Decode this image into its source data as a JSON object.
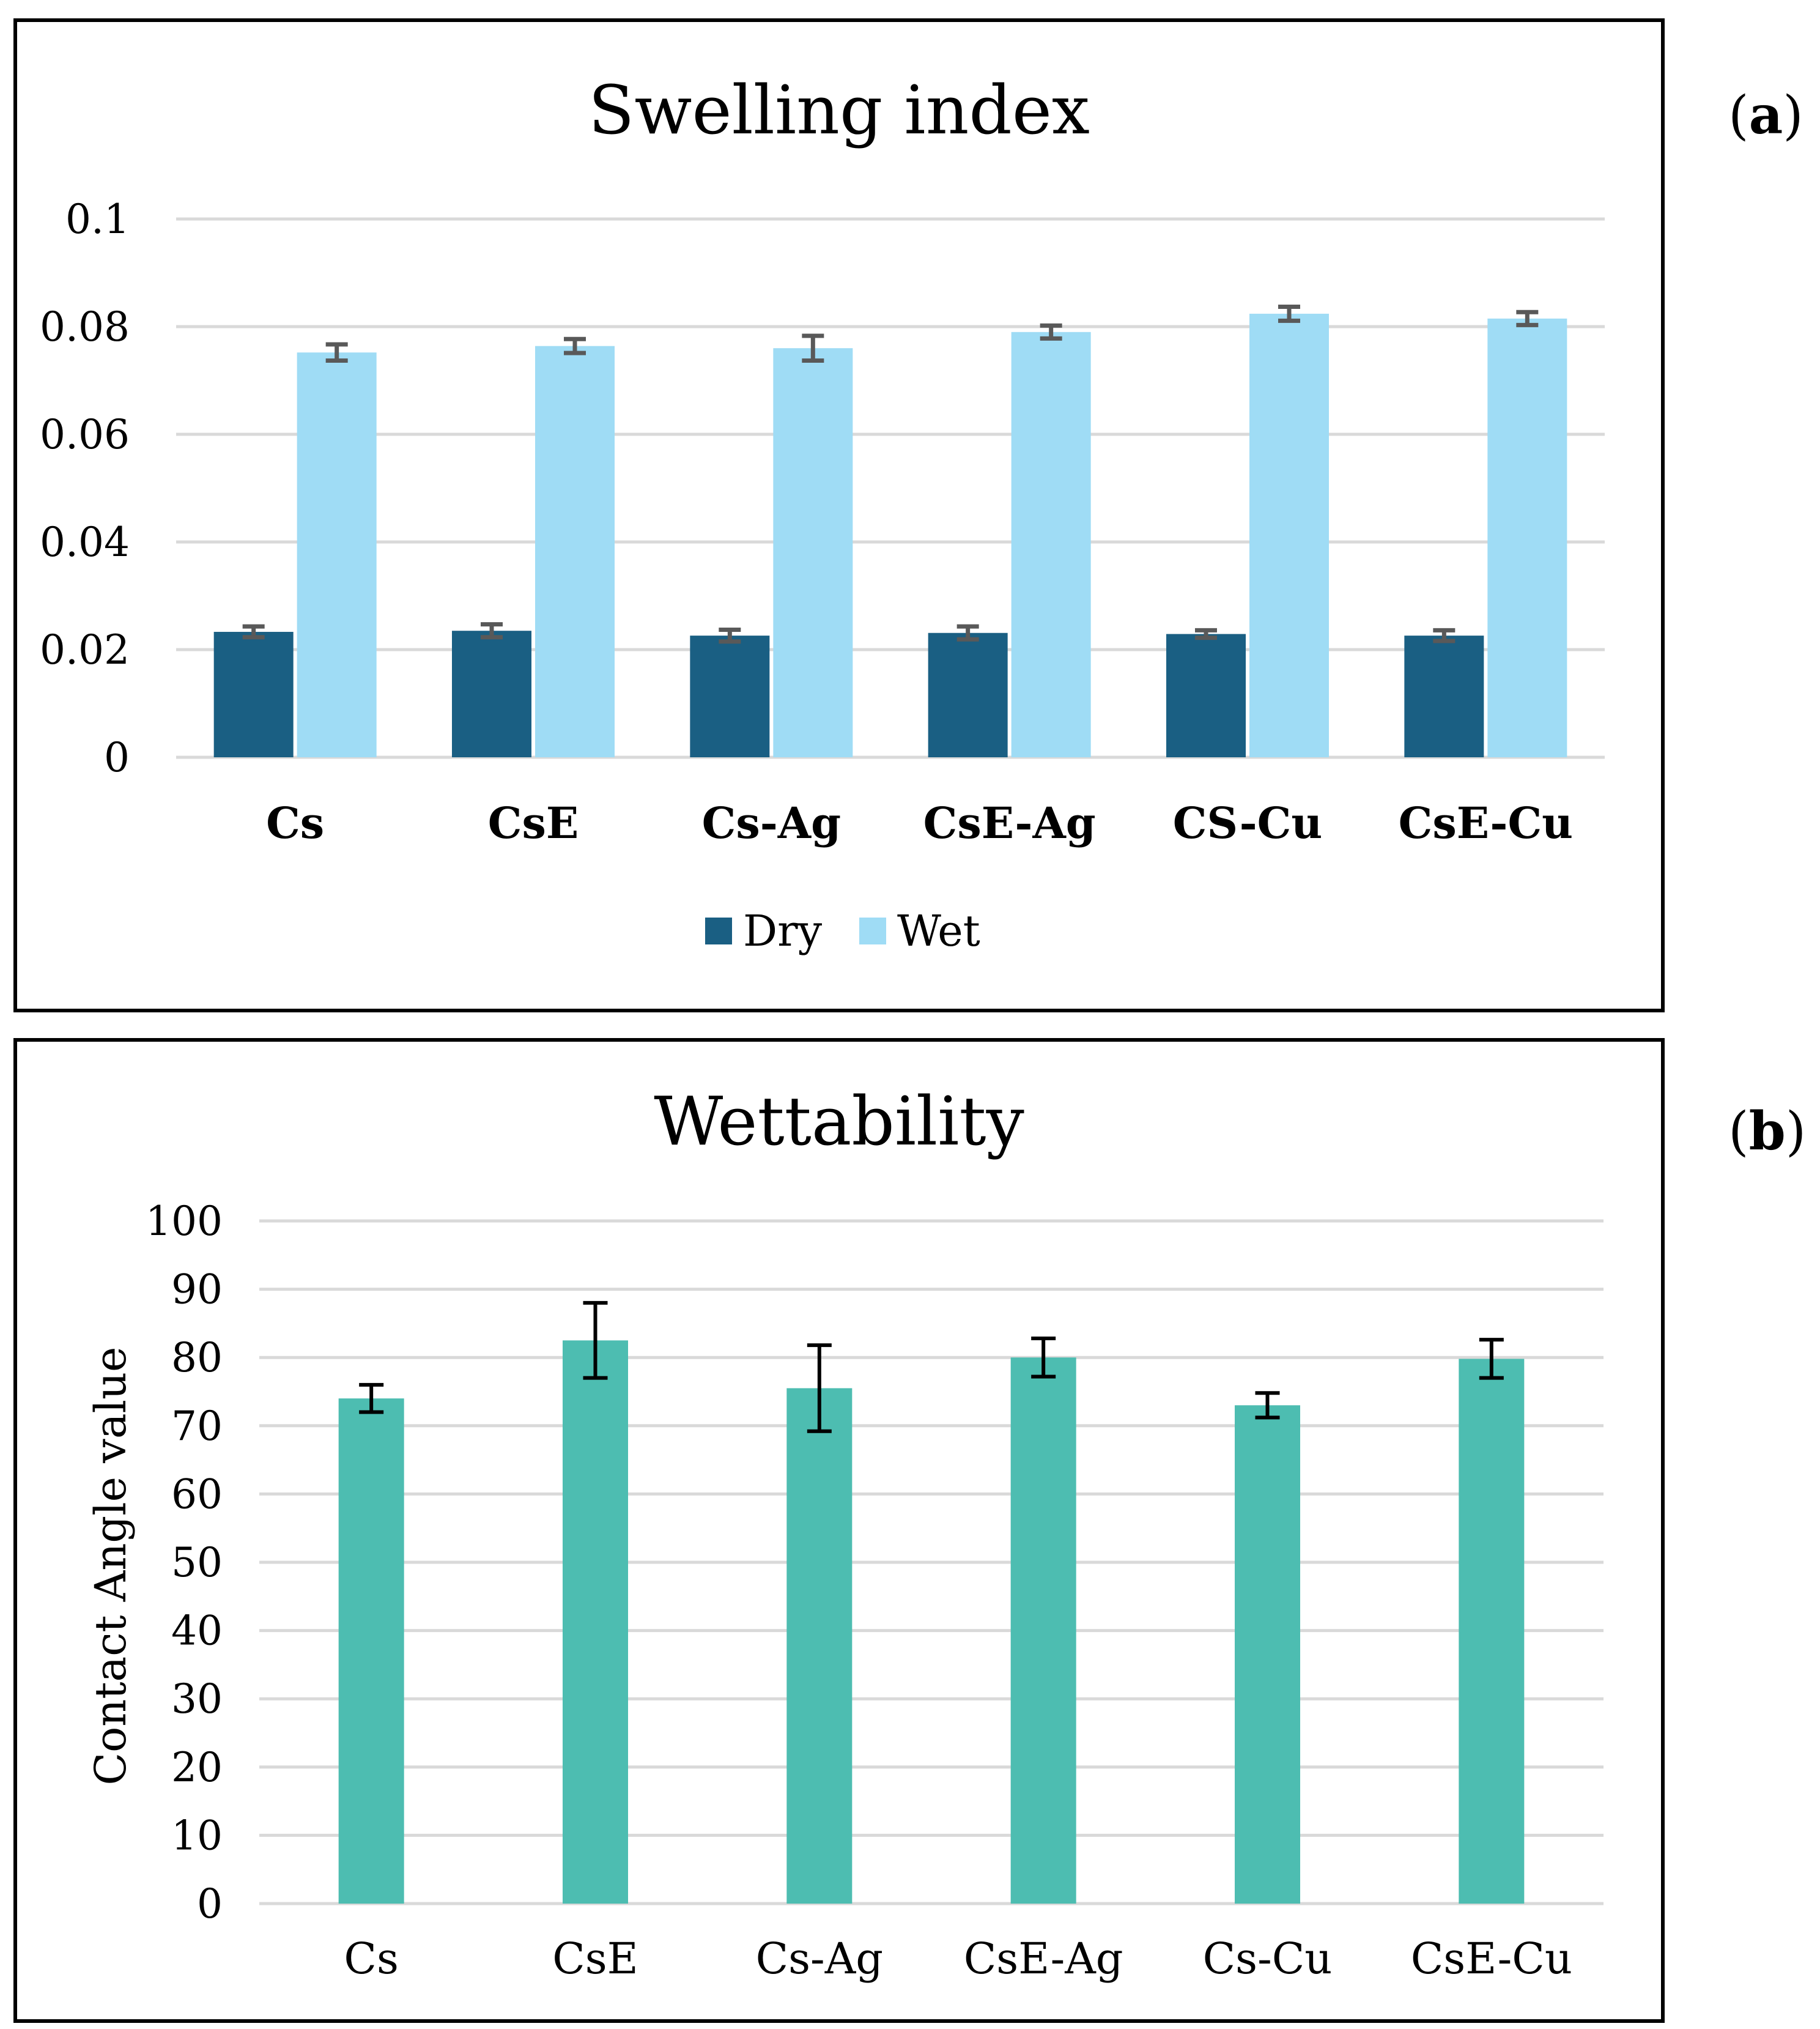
{
  "chart_data": [
    {
      "panel_label": "a",
      "type": "bar",
      "title": "Swelling index",
      "xlabel": "",
      "ylabel": "",
      "categories": [
        "Cs",
        "CsE",
        "Cs-Ag",
        "CsE-Ag",
        "CS-Cu",
        "CsE-Cu"
      ],
      "series": [
        {
          "name": "Dry",
          "color": "#1a5f83",
          "values": [
            0.0233,
            0.0235,
            0.0226,
            0.0231,
            0.0229,
            0.0226
          ],
          "errors": [
            0.001,
            0.0012,
            0.0011,
            0.0012,
            0.0007,
            0.001
          ]
        },
        {
          "name": "Wet",
          "color": "#9fdcf5",
          "values": [
            0.0752,
            0.0764,
            0.076,
            0.079,
            0.0824,
            0.0815
          ],
          "errors": [
            0.0015,
            0.0013,
            0.0023,
            0.0012,
            0.0013,
            0.0012
          ]
        }
      ],
      "ylim": [
        0,
        0.1
      ],
      "yticks": [
        "0",
        "0.02",
        "0.04",
        "0.06",
        "0.08",
        "0.1"
      ],
      "ytick_values": [
        0,
        0.02,
        0.04,
        0.06,
        0.08,
        0.1
      ],
      "grid": true,
      "legend_position": "bottom-center"
    },
    {
      "panel_label": "b",
      "type": "bar",
      "title": "Wettability",
      "xlabel": "",
      "ylabel": "Contact Angle value",
      "categories": [
        "Cs",
        "CsE",
        "Cs-Ag",
        "CsE-Ag",
        "Cs-Cu",
        "CsE-Cu"
      ],
      "series": [
        {
          "name": "Contact Angle value",
          "color": "#4dbdb1",
          "values": [
            74.0,
            82.5,
            75.5,
            80.0,
            73.0,
            79.8
          ],
          "errors": [
            2.0,
            5.5,
            6.3,
            2.8,
            1.8,
            2.8
          ]
        }
      ],
      "ylim": [
        0,
        100
      ],
      "yticks": [
        "0",
        "10",
        "20",
        "30",
        "40",
        "50",
        "60",
        "70",
        "80",
        "90",
        "100"
      ],
      "ytick_values": [
        0,
        10,
        20,
        30,
        40,
        50,
        60,
        70,
        80,
        90,
        100
      ],
      "grid": true,
      "legend_position": "none"
    }
  ]
}
